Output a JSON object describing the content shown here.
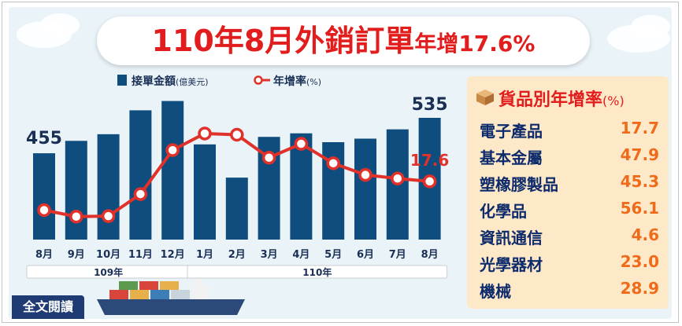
{
  "title": {
    "main": "110年8月外銷訂單",
    "suffix": "年增17.6%"
  },
  "legend": {
    "bar_label": "接單金額",
    "bar_unit": "(億美元)",
    "line_label": "年增率",
    "line_unit": "(%)"
  },
  "year_bands": [
    "109年",
    "110年"
  ],
  "chart_data": {
    "type": "bar",
    "categories": [
      "8月",
      "9月",
      "10月",
      "11月",
      "12月",
      "1月",
      "2月",
      "3月",
      "4月",
      "5月",
      "6月",
      "7月",
      "8月"
    ],
    "series": [
      {
        "name": "接單金額",
        "type": "bar",
        "values": [
          455,
          483,
          498,
          552,
          573,
          475,
          400,
          492,
          500,
          480,
          488,
          509,
          535
        ]
      },
      {
        "name": "年增率",
        "type": "line",
        "values": [
          -1.4,
          -5.7,
          -5.4,
          9.2,
          38.3,
          49.3,
          48.5,
          33.3,
          42.5,
          29.6,
          21.9,
          19.5,
          17.6
        ]
      }
    ],
    "data_labels": {
      "first_bar": "455",
      "last_bar": "535",
      "last_line": "17.6"
    },
    "colors": {
      "bar": "#0f4d7e",
      "line": "#e0312b",
      "marker_fill": "#ffffff"
    },
    "legend_position": "top"
  },
  "panel": {
    "title": "貨品別年增率",
    "unit": "(%)",
    "items": [
      {
        "name": "電子產品",
        "value": "17.7"
      },
      {
        "name": "基本金屬",
        "value": "47.9"
      },
      {
        "name": "塑橡膠製品",
        "value": "45.3"
      },
      {
        "name": "化學品",
        "value": "56.1"
      },
      {
        "name": "資訊通信",
        "value": "4.6"
      },
      {
        "name": "光學器材",
        "value": "23.0"
      },
      {
        "name": "機械",
        "value": "28.9"
      }
    ]
  },
  "read_full_button": "全文閱讀"
}
